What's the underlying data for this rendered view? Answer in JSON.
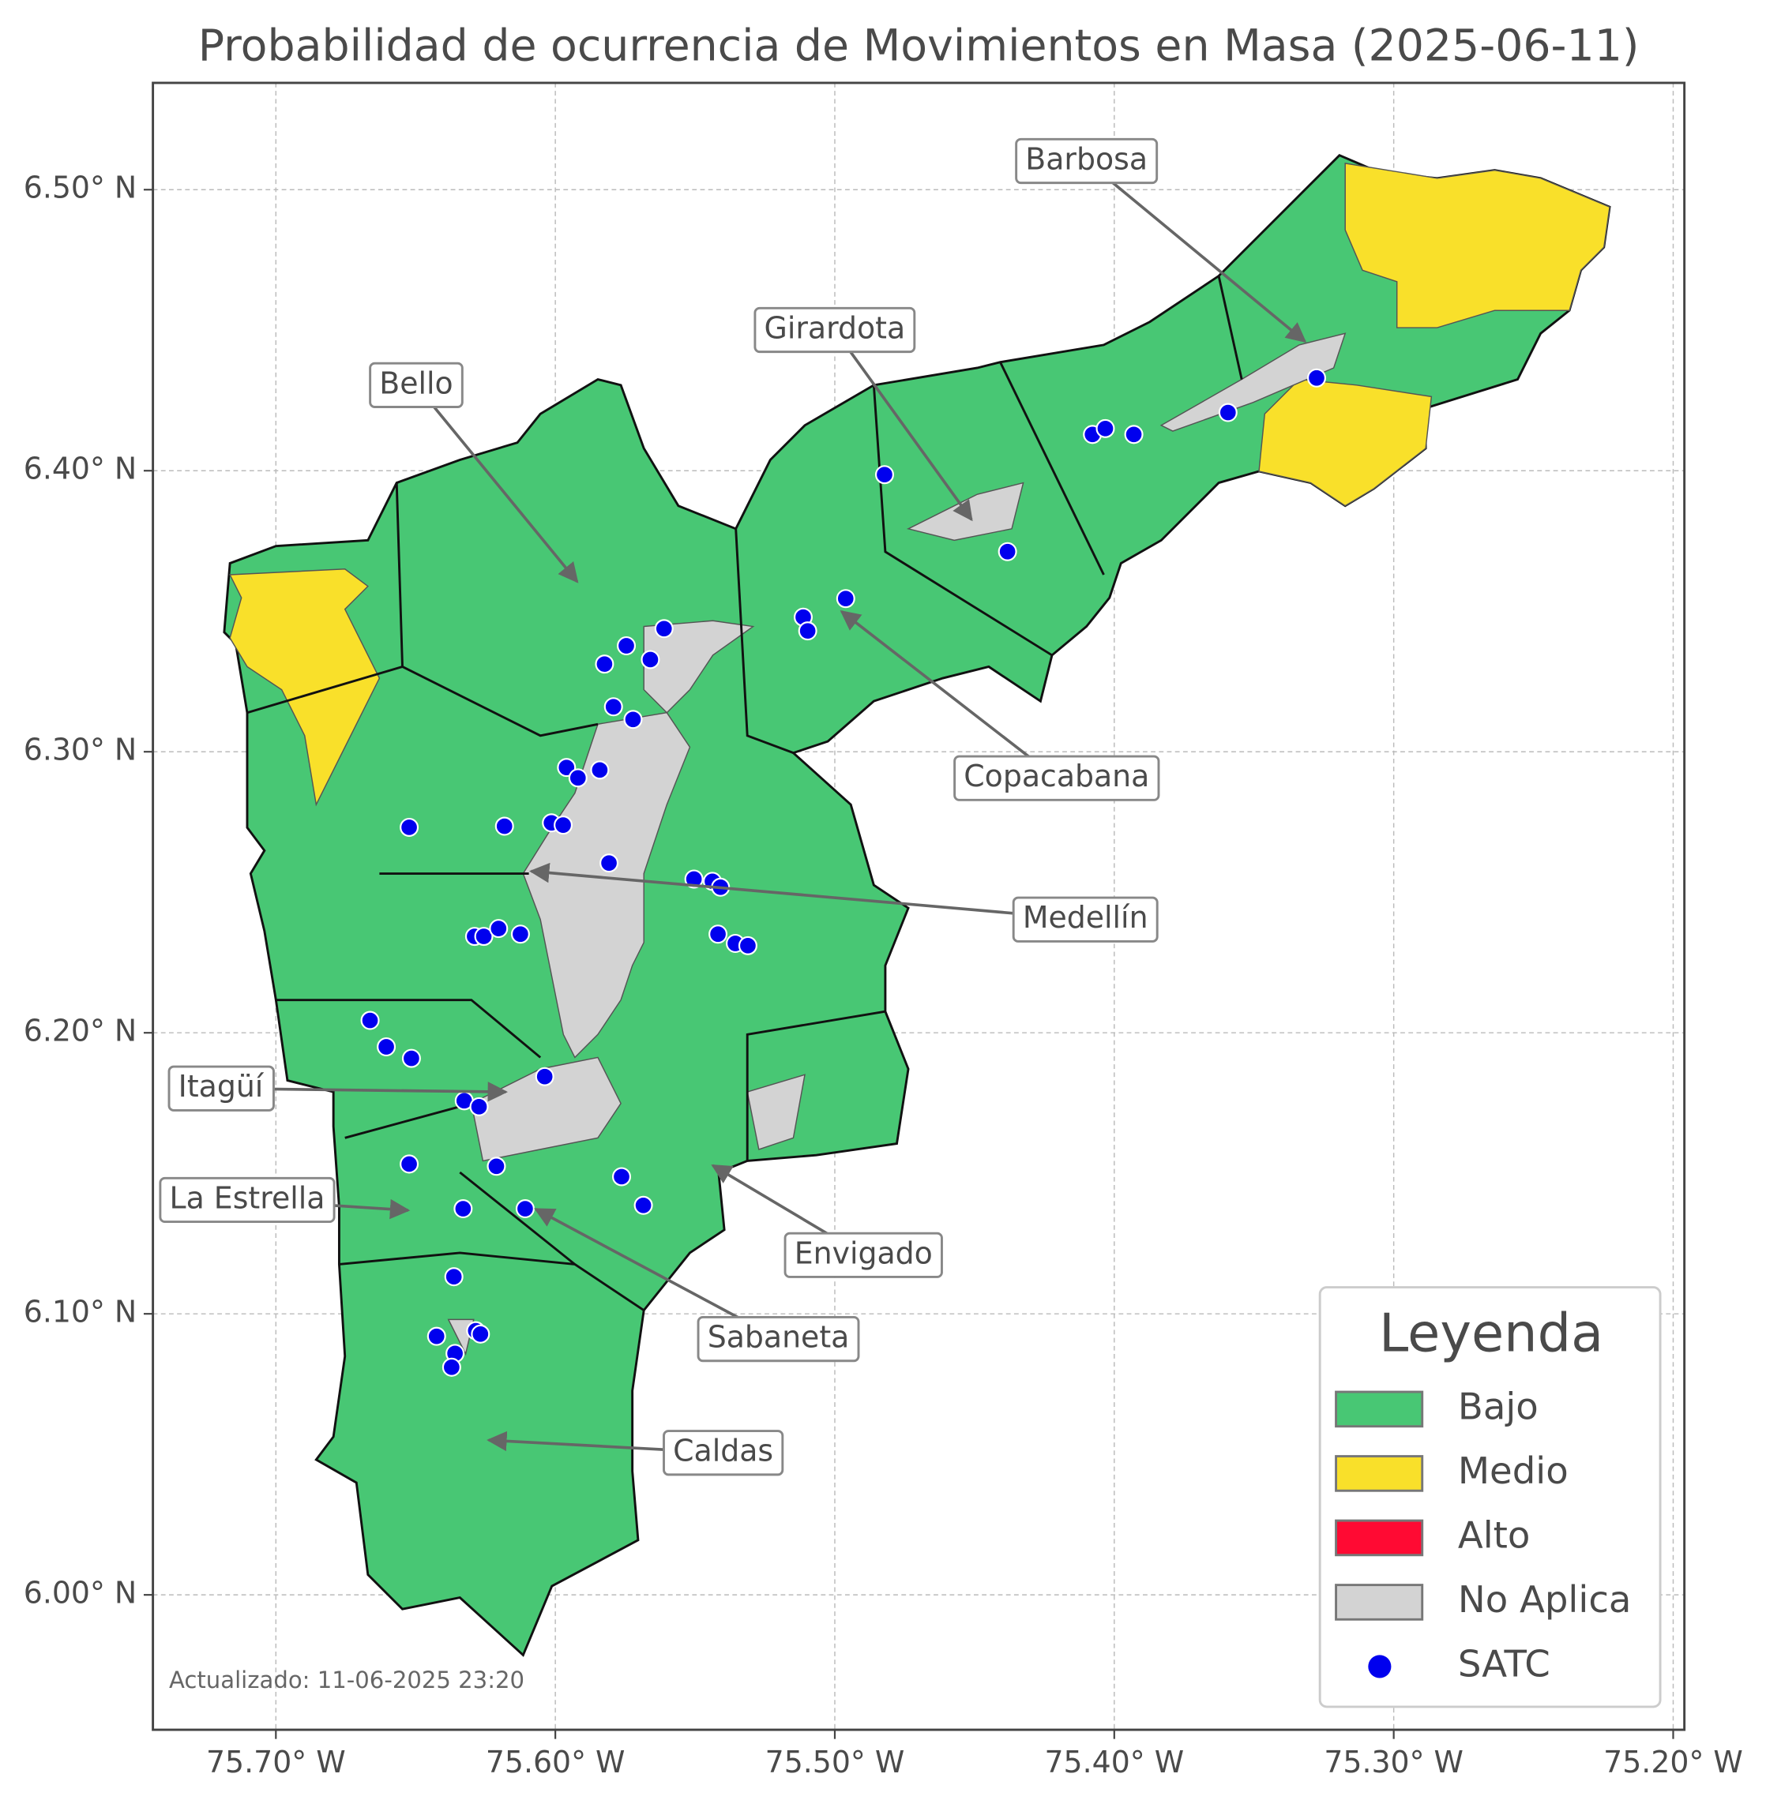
{
  "chart_data": {
    "type": "map",
    "title": "Probabilidad de ocurrencia de Movimientos en Masa (2025-06-11)",
    "xlim": [
      -75.744,
      -75.196
    ],
    "ylim": [
      5.952,
      6.538
    ],
    "xticks": [
      {
        "value": -75.7,
        "label": "75.70° W"
      },
      {
        "value": -75.6,
        "label": "75.60° W"
      },
      {
        "value": -75.5,
        "label": "75.50° W"
      },
      {
        "value": -75.4,
        "label": "75.40° W"
      },
      {
        "value": -75.3,
        "label": "75.30° W"
      },
      {
        "value": -75.2,
        "label": "75.20° W"
      }
    ],
    "yticks": [
      {
        "value": 6.0,
        "label": "6.00° N"
      },
      {
        "value": 6.1,
        "label": "6.10° N"
      },
      {
        "value": 6.2,
        "label": "6.20° N"
      },
      {
        "value": 6.3,
        "label": "6.30° N"
      },
      {
        "value": 6.4,
        "label": "6.40° N"
      },
      {
        "value": 6.5,
        "label": "6.50° N"
      }
    ],
    "grid": true,
    "legend": {
      "title": "Leyenda",
      "position": "lower right",
      "items": [
        {
          "name": "Bajo",
          "color": "#48c774"
        },
        {
          "name": "Medio",
          "color": "#f9e02a"
        },
        {
          "name": "Alto",
          "color": "#ff0a33"
        },
        {
          "name": "No Aplica",
          "color": "#d3d3d3"
        }
      ]
    },
    "series": [
      {
        "name": "SATC",
        "color": "#0000ee",
        "x": [
          -75.3276,
          -75.3593,
          -75.4078,
          -75.4032,
          -75.393,
          -75.4822,
          -75.4382,
          -75.4961,
          -75.5113,
          -75.5097,
          -75.5611,
          -75.5746,
          -75.5824,
          -75.566,
          -75.5792,
          -75.5722,
          -75.596,
          -75.5919,
          -75.5841,
          -75.6523,
          -75.6182,
          -75.6014,
          -75.5972,
          -75.5808,
          -75.5504,
          -75.5438,
          -75.5409,
          -75.5418,
          -75.5356,
          -75.5311,
          -75.6289,
          -75.6256,
          -75.6203,
          -75.6125,
          -75.6663,
          -75.6605,
          -75.6515,
          -75.6038,
          -75.6326,
          -75.6273,
          -75.6523,
          -75.6211,
          -75.5763,
          -75.5685,
          -75.633,
          -75.6108,
          -75.6363,
          -75.6425,
          -75.6285,
          -75.6268,
          -75.6359,
          -75.6371
        ],
        "y": [
          6.433,
          6.4207,
          6.4129,
          6.415,
          6.4129,
          6.3986,
          6.3712,
          6.3545,
          6.3479,
          6.343,
          6.3438,
          6.3377,
          6.3312,
          6.3328,
          6.316,
          6.3115,
          6.2944,
          6.2907,
          6.2935,
          6.2731,
          6.2735,
          6.2747,
          6.2739,
          6.2604,
          6.2547,
          6.2539,
          6.2518,
          6.2351,
          6.2318,
          6.231,
          6.2343,
          6.2343,
          6.2371,
          6.2351,
          6.2044,
          6.195,
          6.1909,
          6.1844,
          6.1758,
          6.1737,
          6.1533,
          6.1525,
          6.1488,
          6.1386,
          6.1374,
          6.1374,
          6.1132,
          6.092,
          6.094,
          6.0928,
          6.0859,
          6.081
        ]
      }
    ],
    "annotations": [
      {
        "text": "Barbosa"
      },
      {
        "text": "Girardota"
      },
      {
        "text": "Bello"
      },
      {
        "text": "Copacabana"
      },
      {
        "text": "Medellín"
      },
      {
        "text": "Itagüí"
      },
      {
        "text": "La Estrella"
      },
      {
        "text": "Envigado"
      },
      {
        "text": "Sabaneta"
      },
      {
        "text": "Caldas"
      }
    ],
    "footnote": "Actualizado: 11-06-2025 23:20"
  }
}
